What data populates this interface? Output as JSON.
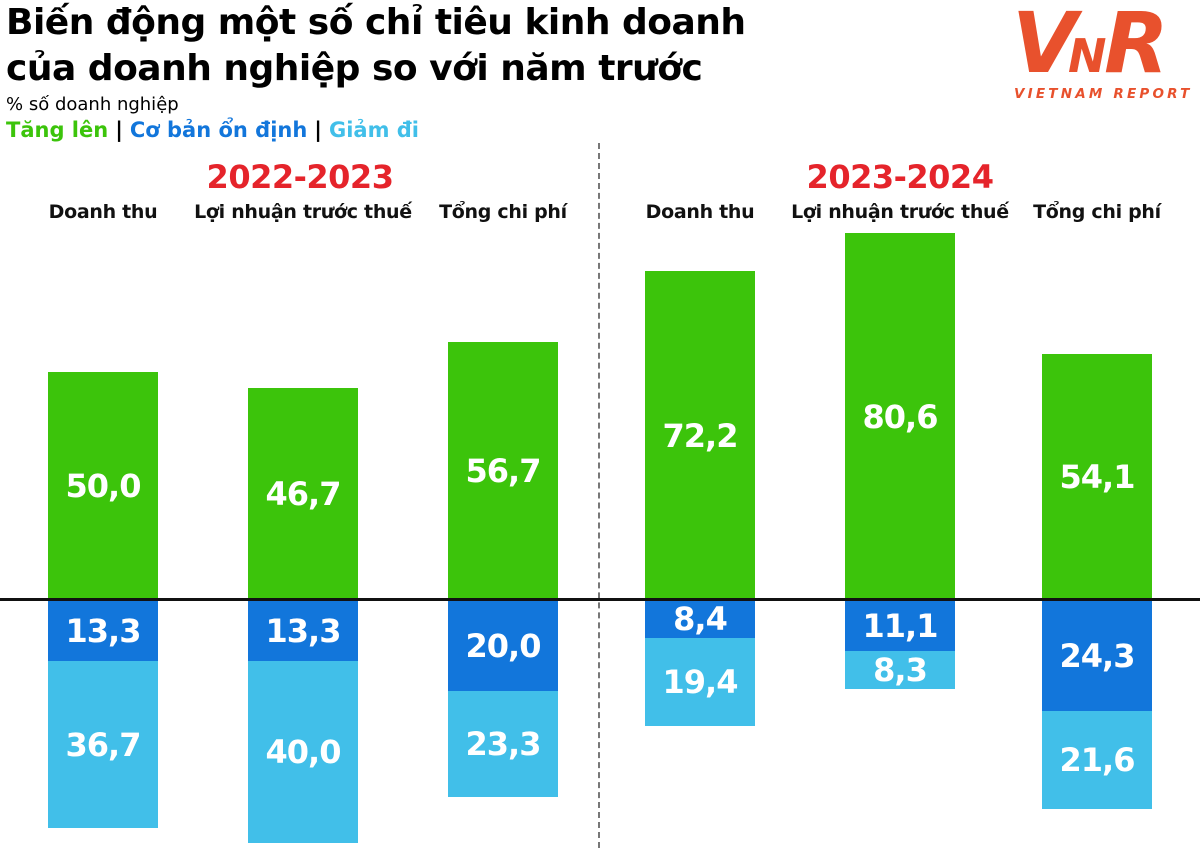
{
  "header": {
    "title_lines": [
      "Biến động một số chỉ tiêu kinh doanh",
      "của doanh nghiệp so với năm trước"
    ],
    "subtitle": "% số doanh nghiệp",
    "legend_separator": "|",
    "legend": [
      {
        "label": "Tăng lên",
        "color": "#3cc40b"
      },
      {
        "label": "Cơ bản ổn định",
        "color": "#1276db"
      },
      {
        "label": "Giảm đi",
        "color": "#41bfe9"
      }
    ]
  },
  "logo": {
    "letters": [
      "V",
      "N",
      "R"
    ],
    "caption": "VIETNAM REPORT",
    "color": "#e8512d"
  },
  "chart_data": {
    "type": "bar",
    "stacked": true,
    "orientation": "diverging-vertical",
    "unit": "% số doanh nghiệp",
    "value_decimal_separator": ",",
    "period_color": "#e5242b",
    "axis": {
      "zero_line": true,
      "line_color": "#111111",
      "divider_color": "#777777",
      "gridlines": false,
      "value_axis_shown": false
    },
    "colors": {
      "tang_len": "#3cc40b",
      "on_dinh": "#1276db",
      "giam_di": "#41bfe9"
    },
    "series_legend": [
      "Tăng lên",
      "Cơ bản ổn định",
      "Giảm đi"
    ],
    "groups": [
      {
        "period": "2022-2023",
        "bars": [
          {
            "category": "Doanh thu",
            "values": {
              "tang_len": 50.0,
              "on_dinh": 13.3,
              "giam_di": 36.7
            }
          },
          {
            "category": "Lợi nhuận trước thuế",
            "values": {
              "tang_len": 46.7,
              "on_dinh": 13.3,
              "giam_di": 40.0
            }
          },
          {
            "category": "Tổng chi phí",
            "values": {
              "tang_len": 56.7,
              "on_dinh": 20.0,
              "giam_di": 23.3
            }
          }
        ]
      },
      {
        "period": "2023-2024",
        "bars": [
          {
            "category": "Doanh thu",
            "values": {
              "tang_len": 72.2,
              "on_dinh": 8.4,
              "giam_di": 19.4
            }
          },
          {
            "category": "Lợi nhuận trước thuế",
            "values": {
              "tang_len": 80.6,
              "on_dinh": 11.1,
              "giam_di": 8.3
            }
          },
          {
            "category": "Tổng chi phí",
            "values": {
              "tang_len": 54.1,
              "on_dinh": 24.3,
              "giam_di": 21.6
            }
          }
        ]
      }
    ]
  }
}
